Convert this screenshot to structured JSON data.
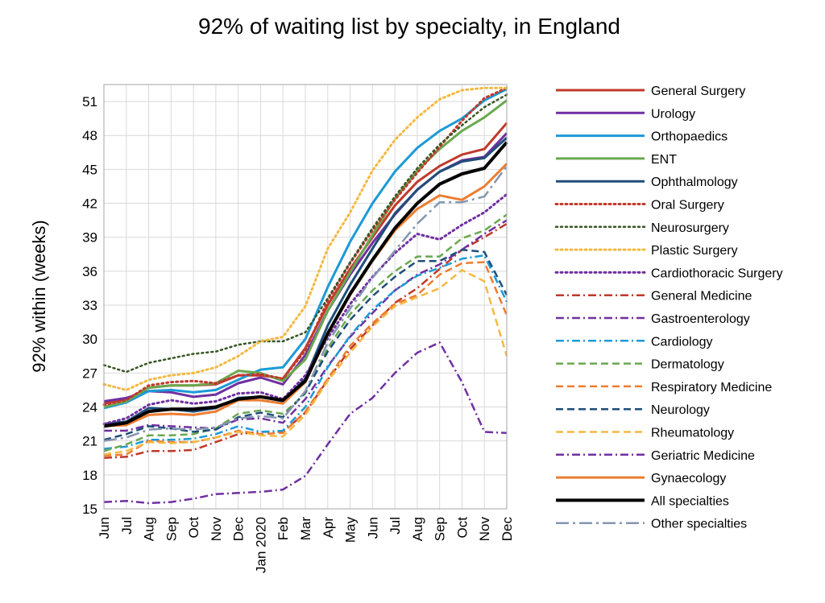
{
  "chart_data": {
    "type": "line",
    "title": "92% of waiting list by specialty, in England",
    "ylabel": "92% within  (weeks)",
    "xlabel": "",
    "categories": [
      "Jun",
      "Jul",
      "Aug",
      "Sep",
      "Oct",
      "Nov",
      "Dec",
      "Jan 2020",
      "Feb",
      "Mar",
      "Apr",
      "May",
      "Jun",
      "Jul",
      "Aug",
      "Sep",
      "Oct",
      "Nov",
      "Dec"
    ],
    "yticks": [
      15,
      18,
      21,
      24,
      27,
      30,
      33,
      36,
      39,
      42,
      45,
      48,
      51
    ],
    "ylim": [
      15,
      52.5
    ],
    "grid": "vertical and horizontal",
    "legend_position": "right",
    "series": [
      {
        "name": "General Surgery",
        "color": "#c0392b",
        "style": "solid",
        "width": 3,
        "values": [
          24.3,
          24.7,
          25.7,
          25.9,
          25.9,
          26.0,
          26.8,
          26.8,
          26.5,
          29.2,
          33.0,
          36.2,
          39.0,
          41.8,
          43.9,
          45.3,
          46.3,
          46.8,
          49.1
        ]
      },
      {
        "name": "Urology",
        "color": "#7030a0",
        "style": "solid",
        "width": 3,
        "values": [
          24.5,
          24.8,
          25.4,
          25.3,
          24.9,
          25.1,
          26.1,
          26.6,
          26.0,
          28.6,
          32.5,
          35.7,
          38.5,
          41.0,
          43.2,
          44.8,
          45.8,
          46.1,
          48.2
        ]
      },
      {
        "name": "Orthopaedics",
        "color": "#1c9ad6",
        "style": "solid",
        "width": 3,
        "values": [
          23.9,
          24.4,
          25.4,
          25.5,
          25.3,
          25.5,
          26.4,
          27.3,
          27.5,
          30.0,
          34.6,
          38.6,
          42.0,
          44.8,
          46.9,
          48.4,
          49.5,
          51.1,
          52.1
        ]
      },
      {
        "name": "ENT",
        "color": "#6aa84f",
        "style": "solid",
        "width": 3,
        "values": [
          24.0,
          24.5,
          25.7,
          25.9,
          25.9,
          26.1,
          27.2,
          27.0,
          26.3,
          28.2,
          32.5,
          35.9,
          39.2,
          42.4,
          44.9,
          46.8,
          48.4,
          49.6,
          51.1
        ]
      },
      {
        "name": "Ophthalmology",
        "color": "#1f4e79",
        "style": "solid",
        "width": 3,
        "values": [
          22.5,
          22.7,
          23.9,
          23.8,
          23.6,
          23.9,
          24.8,
          24.9,
          24.5,
          26.5,
          31.2,
          34.8,
          38.0,
          41.1,
          43.2,
          44.8,
          45.7,
          46.0,
          47.8
        ]
      },
      {
        "name": "Oral Surgery",
        "color": "#c0392b",
        "style": "dot",
        "width": 3,
        "values": [
          24.2,
          24.6,
          25.9,
          26.2,
          26.3,
          26.1,
          26.8,
          26.9,
          26.5,
          29.0,
          33.4,
          36.7,
          39.6,
          42.3,
          44.7,
          47.0,
          49.3,
          51.3,
          52.2
        ]
      },
      {
        "name": "Neurosurgery",
        "color": "#375623",
        "style": "dot",
        "width": 2.5,
        "values": [
          27.7,
          27.1,
          27.9,
          28.3,
          28.7,
          28.9,
          29.5,
          29.8,
          29.8,
          30.6,
          33.6,
          36.8,
          39.8,
          42.6,
          45.1,
          47.2,
          48.9,
          50.5,
          51.6
        ]
      },
      {
        "name": "Plastic Surgery",
        "color": "#f4b942",
        "style": "dot",
        "width": 3,
        "values": [
          26.0,
          25.5,
          26.4,
          26.8,
          27.0,
          27.5,
          28.5,
          29.8,
          30.2,
          32.9,
          38.0,
          41.2,
          44.9,
          47.6,
          49.6,
          51.2,
          52.0,
          52.2,
          52.2
        ]
      },
      {
        "name": "Cardiothoracic Surgery",
        "color": "#7030a0",
        "style": "dot",
        "width": 3,
        "values": [
          22.5,
          23.0,
          24.2,
          24.6,
          24.3,
          24.5,
          25.2,
          25.3,
          24.7,
          26.8,
          30.1,
          33.1,
          35.5,
          37.6,
          39.3,
          38.8,
          40.1,
          41.2,
          42.8
        ]
      },
      {
        "name": "General Medicine",
        "color": "#c0392b",
        "style": "dashdot",
        "width": 2.5,
        "values": [
          19.5,
          19.6,
          20.1,
          20.1,
          20.2,
          20.9,
          21.6,
          21.8,
          21.8,
          23.5,
          26.4,
          29.1,
          31.2,
          33.2,
          34.5,
          36.2,
          37.9,
          39.0,
          40.2
        ]
      },
      {
        "name": "Gastroenterology",
        "color": "#7030a0",
        "style": "dashdot",
        "width": 2.5,
        "values": [
          21.9,
          21.9,
          22.4,
          22.3,
          22.2,
          22.1,
          22.9,
          23.0,
          22.6,
          24.7,
          27.6,
          30.2,
          32.3,
          34.3,
          35.7,
          36.6,
          37.9,
          39.3,
          40.5
        ]
      },
      {
        "name": "Cardiology",
        "color": "#1c9ad6",
        "style": "dashdot",
        "width": 2.5,
        "values": [
          20.3,
          20.5,
          21.1,
          21.1,
          21.2,
          21.6,
          22.3,
          21.8,
          21.9,
          24.0,
          27.5,
          30.3,
          32.6,
          34.3,
          35.6,
          36.3,
          37.1,
          37.4,
          33.3
        ]
      },
      {
        "name": "Dermatology",
        "color": "#6aa84f",
        "style": "dash",
        "width": 2.5,
        "values": [
          20.1,
          20.7,
          21.5,
          21.5,
          21.6,
          22.1,
          23.4,
          23.7,
          23.4,
          25.2,
          29.2,
          32.2,
          34.3,
          36.0,
          37.3,
          37.3,
          38.9,
          39.6,
          41.0
        ]
      },
      {
        "name": "Respiratory Medicine",
        "color": "#ed7d31",
        "style": "dash",
        "width": 2.5,
        "values": [
          19.7,
          19.8,
          21.0,
          20.9,
          20.9,
          21.3,
          21.9,
          21.6,
          21.7,
          23.6,
          26.5,
          29.4,
          31.4,
          33.1,
          33.9,
          35.7,
          36.7,
          36.8,
          32.1
        ]
      },
      {
        "name": "Neurology",
        "color": "#1f4e79",
        "style": "dash",
        "width": 2.5,
        "values": [
          21.1,
          21.6,
          22.3,
          22.1,
          21.8,
          22.0,
          23.1,
          23.5,
          23.1,
          25.3,
          28.9,
          31.7,
          33.8,
          35.5,
          36.9,
          36.9,
          37.9,
          37.7,
          33.9
        ]
      },
      {
        "name": "Rheumatology",
        "color": "#f4b942",
        "style": "dash",
        "width": 2.5,
        "values": [
          19.8,
          20.1,
          20.9,
          20.8,
          20.9,
          21.3,
          21.8,
          21.5,
          21.4,
          23.3,
          26.3,
          28.8,
          31.1,
          32.9,
          33.7,
          34.5,
          36.1,
          35.1,
          28.5
        ]
      },
      {
        "name": "Geriatric Medicine",
        "color": "#7030a0",
        "style": "dashdot",
        "width": 2.5,
        "values": [
          15.6,
          15.7,
          15.5,
          15.6,
          15.9,
          16.3,
          16.4,
          16.5,
          16.7,
          17.9,
          20.7,
          23.4,
          24.8,
          27.0,
          28.8,
          29.7,
          26.2,
          21.8,
          21.7
        ]
      },
      {
        "name": "Gynaecology",
        "color": "#ed7d31",
        "style": "solid",
        "width": 3,
        "values": [
          22.3,
          22.4,
          23.3,
          23.4,
          23.3,
          23.6,
          24.6,
          24.6,
          24.3,
          26.2,
          30.4,
          33.9,
          36.9,
          39.6,
          41.5,
          42.7,
          42.3,
          43.5,
          45.5
        ]
      },
      {
        "name": "All specialties",
        "color": "#000000",
        "style": "solid",
        "width": 4,
        "values": [
          22.3,
          22.6,
          23.6,
          23.8,
          23.8,
          24.0,
          24.7,
          24.9,
          24.6,
          26.3,
          30.5,
          34.0,
          37.0,
          39.8,
          42.0,
          43.7,
          44.6,
          45.1,
          47.4
        ]
      },
      {
        "name": "Other specialties",
        "color": "#8496b0",
        "style": "longdashdot",
        "width": 2.5,
        "values": [
          21.0,
          21.3,
          22.0,
          22.1,
          22.0,
          22.2,
          23.0,
          23.2,
          23.0,
          25.4,
          29.7,
          32.7,
          35.4,
          37.8,
          40.2,
          42.1,
          42.1,
          42.6,
          45.3
        ]
      }
    ]
  }
}
